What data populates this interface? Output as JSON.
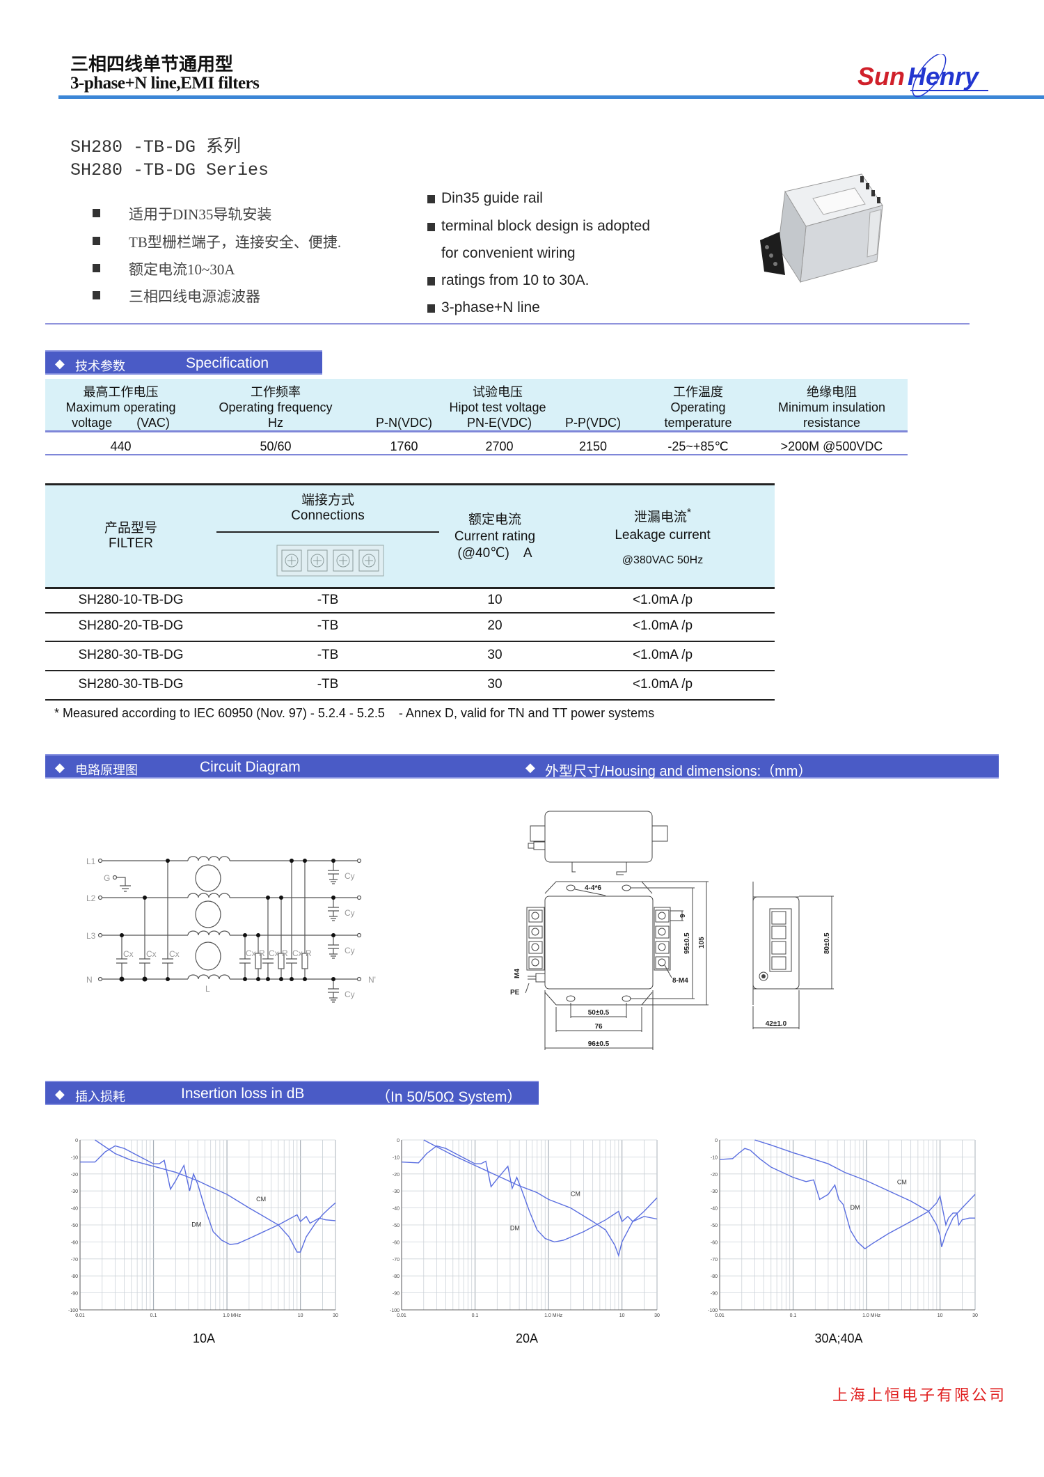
{
  "header": {
    "title_cn": "三相四线单节通用型",
    "title_en": "3-phase+N line,EMI filters",
    "logo_text": "SunHenry",
    "logo_part1": "Sun",
    "logo_part2": "Henry",
    "logo_colors": {
      "sun": "#d0202a",
      "henry": "#2236d0"
    },
    "rule_color": "#3b86d6"
  },
  "series": {
    "title_cn": "SH280 -TB-DG 系列",
    "title_en": "SH280 -TB-DG Series"
  },
  "features_cn": [
    "适用于DIN35导轨安装",
    "TB型栅栏端子，连接安全、便捷.",
    "额定电流10~30A",
    "三相四线电源滤波器"
  ],
  "features_en": [
    "Din35 guide rail",
    "terminal block design is adopted",
    "for convenient wiring",
    "ratings from 10 to 30A.",
    "3-phase+N line"
  ],
  "product_image": {
    "icon": "emi-filter-product-photo"
  },
  "spec": {
    "bar_cn": "技术参数",
    "bar_en": "Specification",
    "bar_color": "#4a5bc6",
    "header_bg": "#d9f1f8",
    "headers": {
      "voltage_cn": "最高工作电压",
      "voltage_en1": "Maximum operating",
      "voltage_en2": "voltage",
      "voltage_unit": "(VAC)",
      "freq_cn": "工作频率",
      "freq_en": "Operating frequency",
      "freq_unit": "Hz",
      "hipot_cn": "试验电压",
      "hipot_en": "Hipot test voltage",
      "pn": "P-N(VDC)",
      "pne": "PN-E(VDC)",
      "pp": "P-P(VDC)",
      "temp_cn": "工作温度",
      "temp_en1": "Operating",
      "temp_en2": "temperature",
      "ins_cn": "绝缘电阻",
      "ins_en1": "Minimum insulation",
      "ins_en2": "resistance"
    },
    "values": {
      "voltage": "440",
      "freq": "50/60",
      "pn": "1760",
      "pne": "2700",
      "pp": "2150",
      "temp": "-25~+85℃",
      "ins": ">200M @500VDC"
    }
  },
  "models": {
    "headers": {
      "filter_cn": "产品型号",
      "filter_en": "FILTER",
      "conn_cn": "端接方式",
      "conn_en": "Connections",
      "current_cn": "额定电流",
      "current_en": "Current rating",
      "current_unit": "(@40℃)    A",
      "leak_cn": "泄漏电流",
      "leak_star": "*",
      "leak_en": "Leakage current",
      "leak_cond": "@380VAC 50Hz"
    },
    "rows": [
      {
        "model": "SH280-10-TB-DG",
        "conn": "-TB",
        "current": "10",
        "leak": "<1.0mA /p"
      },
      {
        "model": "SH280-20-TB-DG",
        "conn": "-TB",
        "current": "20",
        "leak": "<1.0mA /p"
      },
      {
        "model": "SH280-30-TB-DG",
        "conn": "-TB",
        "current": "30",
        "leak": "<1.0mA /p"
      },
      {
        "model": "SH280-30-TB-DG",
        "conn": "-TB",
        "current": "30",
        "leak": "<1.0mA /p"
      }
    ],
    "footnote": "* Measured according to IEC 60950 (Nov. 97) - 5.2.4 - 5.2.5    - Annex D, valid for TN and TT power systems"
  },
  "circuit": {
    "bar_cn": "电路原理图",
    "bar_en": "Circuit Diagram",
    "labels": {
      "l1": "L1",
      "l2": "L2",
      "l3": "L3",
      "n": "N",
      "g": "G",
      "cx": "Cx",
      "r": "R",
      "cy": "Cy",
      "l": "L",
      "n_out": "N'"
    }
  },
  "housing": {
    "bar": "外型尺寸/Housing and dimensions:（mm）",
    "dims": {
      "holes": "4-4*6",
      "pitch": "9",
      "h95": "95±0.5",
      "h105": "105",
      "screws": "8-M4",
      "m4": "M4",
      "pe": "PE",
      "w50": "50±0.5",
      "w76": "76",
      "w96": "96±0.5",
      "d42": "42±1.0",
      "h80": "80±0.5"
    }
  },
  "insertion": {
    "bar_cn": "插入损耗",
    "bar_en": "Insertion loss in dB",
    "bar_system": "（In 50/50Ω System）"
  },
  "chart_data": [
    {
      "type": "line",
      "title": "10A",
      "xscale": "log",
      "xlim": [
        0.01,
        30
      ],
      "ylim": [
        -100,
        0
      ],
      "grid": true,
      "x_ticks": [
        "0.01",
        "0.1",
        "1.0  MHz",
        "10",
        "30"
      ],
      "y_ticks": [
        "0",
        "-10",
        "-20",
        "-30",
        "-40",
        "-50",
        "-60",
        "-70",
        "-80",
        "-90",
        "-100"
      ],
      "series": [
        {
          "name": "CM",
          "points": [
            [
              0.016,
              0
            ],
            [
              0.03,
              -8
            ],
            [
              0.05,
              -12
            ],
            [
              0.1,
              -15.5
            ],
            [
              0.2,
              -19
            ],
            [
              0.4,
              -24
            ],
            [
              0.7,
              -29
            ],
            [
              1,
              -32
            ],
            [
              2,
              -40
            ],
            [
              5,
              -50
            ],
            [
              7,
              -57
            ],
            [
              9,
              -66
            ],
            [
              10,
              -66
            ],
            [
              12,
              -57
            ],
            [
              16,
              -49
            ],
            [
              20,
              -44
            ],
            [
              25,
              -40
            ],
            [
              30,
              -37
            ]
          ]
        },
        {
          "name": "DM",
          "points": [
            [
              0.01,
              -13
            ],
            [
              0.016,
              -13
            ],
            [
              0.022,
              -7
            ],
            [
              0.03,
              -3.5
            ],
            [
              0.04,
              -5
            ],
            [
              0.06,
              -9
            ],
            [
              0.1,
              -14
            ],
            [
              0.12,
              -14
            ],
            [
              0.14,
              -12
            ],
            [
              0.17,
              -29
            ],
            [
              0.2,
              -24
            ],
            [
              0.26,
              -15
            ],
            [
              0.31,
              -30
            ],
            [
              0.35,
              -20
            ],
            [
              0.4,
              -26
            ],
            [
              0.5,
              -40
            ],
            [
              0.65,
              -54
            ],
            [
              0.85,
              -59
            ],
            [
              1.1,
              -61.5
            ],
            [
              1.4,
              -61
            ],
            [
              2,
              -58
            ],
            [
              5,
              -50
            ],
            [
              9,
              -44
            ],
            [
              10,
              -48
            ],
            [
              12,
              -45
            ],
            [
              13.5,
              -49
            ],
            [
              18,
              -46
            ],
            [
              22,
              -47
            ],
            [
              30,
              -47.5
            ]
          ]
        }
      ]
    },
    {
      "type": "line",
      "title": "20A",
      "xscale": "log",
      "xlim": [
        0.01,
        30
      ],
      "ylim": [
        -100,
        0
      ],
      "grid": true,
      "x_ticks": [
        "0.01",
        "0.1",
        "1.0  MHz",
        "10",
        "30"
      ],
      "y_ticks": [
        "0",
        "-10",
        "-20",
        "-30",
        "-40",
        "-50",
        "-60",
        "-70",
        "-80",
        "-90",
        "-100"
      ],
      "series": [
        {
          "name": "CM",
          "points": [
            [
              0.02,
              0
            ],
            [
              0.03,
              -4
            ],
            [
              0.05,
              -9
            ],
            [
              0.1,
              -15
            ],
            [
              0.2,
              -21
            ],
            [
              0.4,
              -27
            ],
            [
              0.7,
              -31
            ],
            [
              1,
              -35
            ],
            [
              2,
              -40
            ],
            [
              4,
              -48
            ],
            [
              6,
              -53
            ],
            [
              8,
              -62
            ],
            [
              9,
              -68
            ],
            [
              10,
              -60
            ],
            [
              14,
              -48
            ],
            [
              20,
              -42
            ],
            [
              30,
              -34
            ]
          ]
        },
        {
          "name": "DM",
          "points": [
            [
              0.01,
              -13
            ],
            [
              0.017,
              -13.5
            ],
            [
              0.022,
              -8
            ],
            [
              0.03,
              -3.5
            ],
            [
              0.04,
              -5
            ],
            [
              0.06,
              -9
            ],
            [
              0.1,
              -14
            ],
            [
              0.12,
              -14
            ],
            [
              0.14,
              -12.5
            ],
            [
              0.165,
              -27.5
            ],
            [
              0.2,
              -23
            ],
            [
              0.28,
              -15.5
            ],
            [
              0.32,
              -28.5
            ],
            [
              0.37,
              -22
            ],
            [
              0.42,
              -28
            ],
            [
              0.55,
              -42
            ],
            [
              0.7,
              -53
            ],
            [
              0.9,
              -58
            ],
            [
              1.2,
              -60
            ],
            [
              1.6,
              -59
            ],
            [
              3,
              -54
            ],
            [
              6,
              -47
            ],
            [
              9,
              -42
            ],
            [
              10,
              -48
            ],
            [
              12,
              -45
            ],
            [
              14,
              -48
            ],
            [
              20,
              -45
            ],
            [
              30,
              -46.5
            ]
          ]
        }
      ]
    },
    {
      "type": "line",
      "title": "30A;40A",
      "xscale": "log",
      "xlim": [
        0.01,
        30
      ],
      "ylim": [
        -100,
        0
      ],
      "grid": true,
      "x_ticks": [
        "0.01",
        "0.1",
        "1.0  MHz",
        "10",
        "30"
      ],
      "y_ticks": [
        "0",
        "-10",
        "-20",
        "-30",
        "-40",
        "-50",
        "-60",
        "-70",
        "-80",
        "-90",
        "-100"
      ],
      "series": [
        {
          "name": "CM",
          "points": [
            [
              0.03,
              0
            ],
            [
              0.05,
              -3
            ],
            [
              0.1,
              -7.5
            ],
            [
              0.3,
              -14
            ],
            [
              0.5,
              -19
            ],
            [
              1,
              -24
            ],
            [
              2,
              -30
            ],
            [
              4,
              -36
            ],
            [
              7,
              -42
            ],
            [
              9,
              -50
            ],
            [
              10,
              -56
            ],
            [
              10.5,
              -63
            ],
            [
              12,
              -55
            ],
            [
              15,
              -46
            ],
            [
              20,
              -40
            ],
            [
              30,
              -32
            ]
          ]
        },
        {
          "name": "DM",
          "points": [
            [
              0.01,
              -11.5
            ],
            [
              0.015,
              -11
            ],
            [
              0.018,
              -8
            ],
            [
              0.022,
              -5
            ],
            [
              0.026,
              -6
            ],
            [
              0.035,
              -11
            ],
            [
              0.05,
              -16
            ],
            [
              0.1,
              -22
            ],
            [
              0.15,
              -24.5
            ],
            [
              0.19,
              -23.5
            ],
            [
              0.23,
              -35
            ],
            [
              0.3,
              -32
            ],
            [
              0.37,
              -26.5
            ],
            [
              0.42,
              -35
            ],
            [
              0.48,
              -38
            ],
            [
              0.6,
              -53
            ],
            [
              0.75,
              -60
            ],
            [
              0.95,
              -64
            ],
            [
              1.2,
              -61
            ],
            [
              2,
              -55
            ],
            [
              4,
              -48
            ],
            [
              7,
              -42
            ],
            [
              9,
              -37
            ],
            [
              10,
              -33
            ],
            [
              11,
              -42
            ],
            [
              12,
              -50
            ],
            [
              13,
              -46
            ],
            [
              15,
              -43
            ],
            [
              17,
              -43
            ],
            [
              18,
              -50
            ],
            [
              20,
              -47
            ],
            [
              25,
              -46
            ],
            [
              30,
              -46
            ]
          ]
        }
      ]
    }
  ],
  "footer": {
    "company": "上海上恒电子有限公司",
    "color": "#e02020"
  }
}
